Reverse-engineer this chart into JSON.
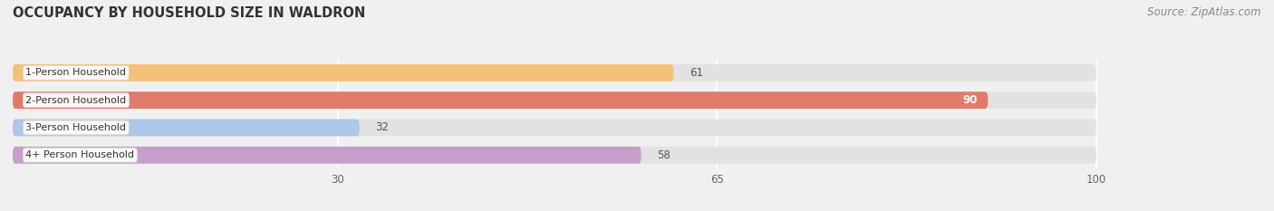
{
  "title": "OCCUPANCY BY HOUSEHOLD SIZE IN WALDRON",
  "source": "Source: ZipAtlas.com",
  "categories": [
    "1-Person Household",
    "2-Person Household",
    "3-Person Household",
    "4+ Person Household"
  ],
  "values": [
    61,
    90,
    32,
    58
  ],
  "bar_colors": [
    "#f5c07a",
    "#e07b6a",
    "#aec6e8",
    "#c4a0c8"
  ],
  "bg_color": "#f0f0f0",
  "bar_bg_color": "#e2e2e2",
  "xlim": [
    0,
    107
  ],
  "data_max": 100,
  "xticks": [
    30,
    65,
    100
  ],
  "title_fontsize": 10.5,
  "source_fontsize": 8.5,
  "bar_label_fontsize": 8.5,
  "tick_fontsize": 8.5,
  "category_fontsize": 8.0,
  "bar_height": 0.62,
  "rounding_size": 0.25
}
